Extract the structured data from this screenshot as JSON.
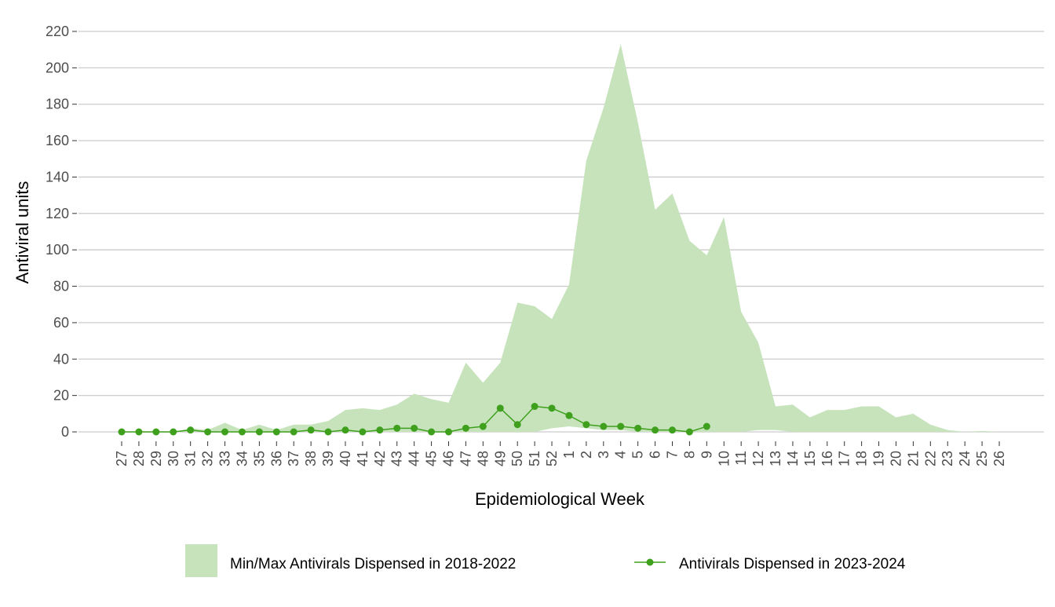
{
  "chart_data": {
    "type": "band-line",
    "x_label": "Epidemiological Week",
    "y_label": "Antiviral units",
    "categories": [
      "27",
      "28",
      "29",
      "30",
      "31",
      "32",
      "33",
      "34",
      "35",
      "36",
      "37",
      "38",
      "39",
      "40",
      "41",
      "42",
      "43",
      "44",
      "45",
      "46",
      "47",
      "48",
      "49",
      "50",
      "51",
      "52",
      "1",
      "2",
      "3",
      "4",
      "5",
      "6",
      "7",
      "8",
      "9",
      "10",
      "11",
      "12",
      "13",
      "14",
      "15",
      "16",
      "17",
      "18",
      "19",
      "20",
      "21",
      "22",
      "23",
      "24",
      "25",
      "26"
    ],
    "series": [
      {
        "name": "Min/Max Antivirals Dispensed in 2018-2022",
        "type": "band",
        "color": "#c6e3bc",
        "min": [
          0,
          0,
          0,
          0,
          0,
          0,
          0,
          0,
          0,
          0,
          0,
          0,
          0,
          0,
          0,
          0,
          0,
          0,
          0,
          0,
          0,
          0,
          0,
          0,
          0,
          2,
          3,
          2,
          1,
          1,
          0,
          0,
          0,
          0,
          0,
          0,
          0,
          1,
          1,
          0,
          0,
          0,
          0,
          0,
          0,
          0,
          0,
          0,
          0,
          0,
          0,
          0
        ],
        "max": [
          0,
          0,
          0,
          0,
          2,
          1,
          5,
          1,
          4,
          1,
          4,
          4,
          6,
          12,
          13,
          12,
          15,
          21,
          18,
          16,
          38,
          27,
          38,
          71,
          69,
          62,
          81,
          149,
          178,
          213,
          170,
          122,
          131,
          105,
          97,
          118,
          66,
          49,
          14,
          15,
          8,
          12,
          12,
          14,
          14,
          8,
          10,
          4,
          1,
          0,
          0.5,
          0
        ]
      },
      {
        "name": "Antivirals Dispensed in 2023-2024",
        "type": "line",
        "color": "#3fa01e",
        "values": [
          0,
          0,
          0,
          0,
          1,
          0,
          0,
          0,
          0,
          0,
          0,
          1,
          0,
          1,
          0,
          1,
          2,
          2,
          0,
          0,
          2,
          3,
          13,
          4,
          14,
          13,
          9,
          4,
          3,
          3,
          2,
          1,
          1,
          0,
          3,
          null,
          null,
          null,
          null,
          null,
          null,
          null,
          null,
          null,
          null,
          null,
          null,
          null,
          null,
          null,
          null,
          null
        ]
      }
    ],
    "ylim": [
      0,
      220
    ],
    "yticks": [
      0,
      20,
      40,
      60,
      80,
      100,
      120,
      140,
      160,
      180,
      200,
      220
    ],
    "grid": true,
    "legend": "bottom"
  }
}
